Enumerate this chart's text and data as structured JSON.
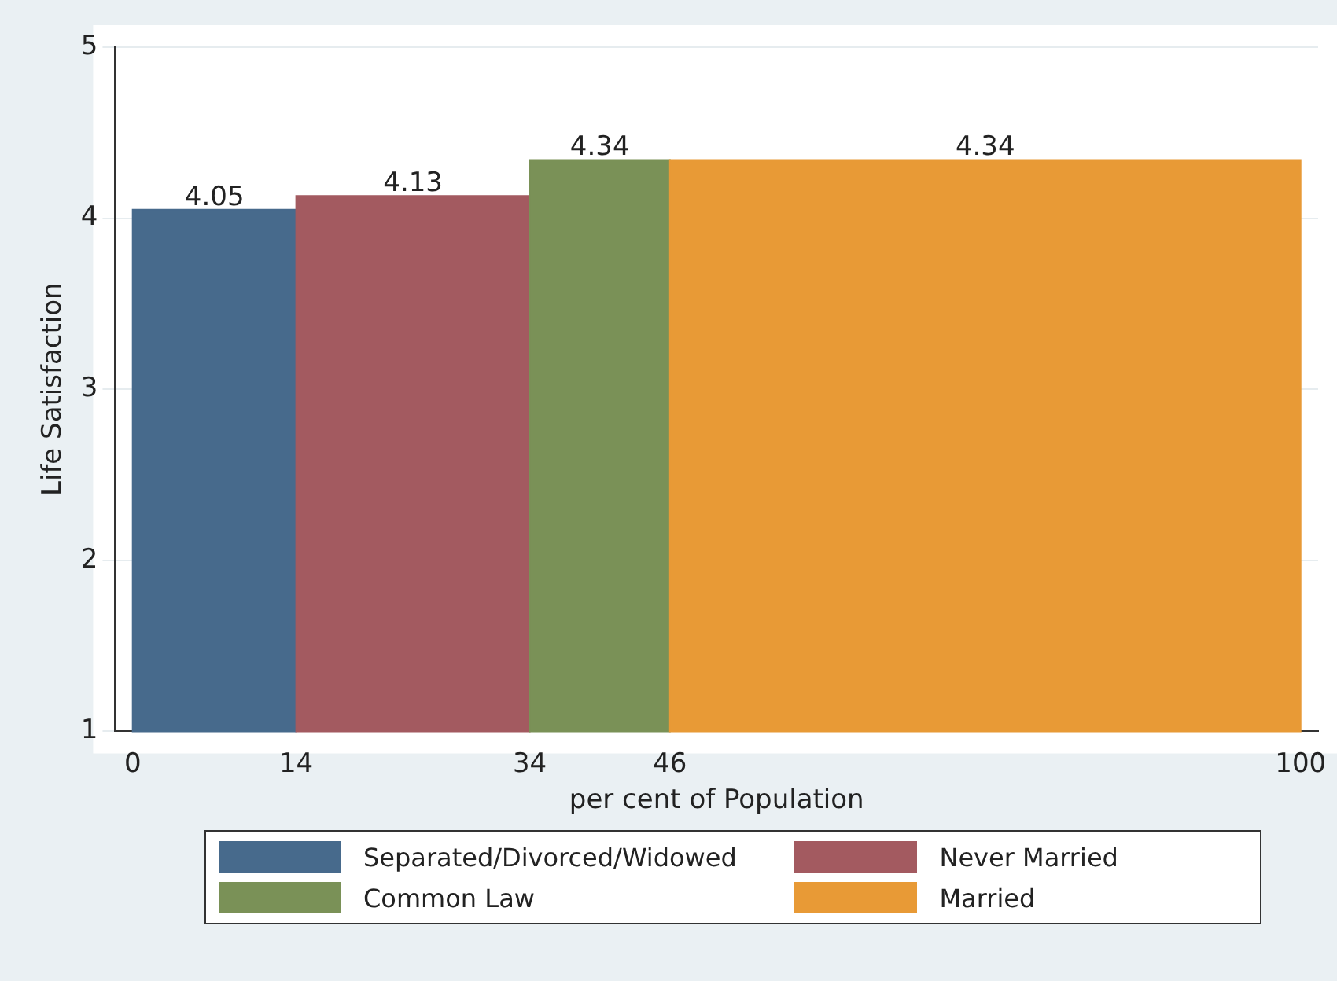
{
  "chart_data": {
    "type": "histogram",
    "xlabel": "per cent of Population",
    "ylabel": "Life Satisfaction",
    "bins": [
      0,
      14,
      34,
      46,
      100
    ],
    "series": [
      {
        "name": "Separated/Divorced/Widowed",
        "color": "#476a8c",
        "values": [
          4.05,
          null,
          null,
          null
        ]
      },
      {
        "name": "Never Married",
        "color": "#a35a60",
        "values": [
          null,
          4.13,
          null,
          null
        ]
      },
      {
        "name": "Common Law",
        "color": "#7a9157",
        "values": [
          null,
          null,
          4.34,
          null
        ]
      },
      {
        "name": "Married",
        "color": "#e89a36",
        "values": [
          null,
          null,
          null,
          4.34
        ]
      }
    ],
    "xlim": [
      -1.5,
      101.5
    ],
    "xticks": [
      0,
      14,
      34,
      46,
      100
    ],
    "ylim": [
      1,
      5
    ],
    "yticks": [
      1,
      2,
      3,
      4,
      5
    ],
    "data_labels": true,
    "grid": "y",
    "legend": "bottom"
  }
}
